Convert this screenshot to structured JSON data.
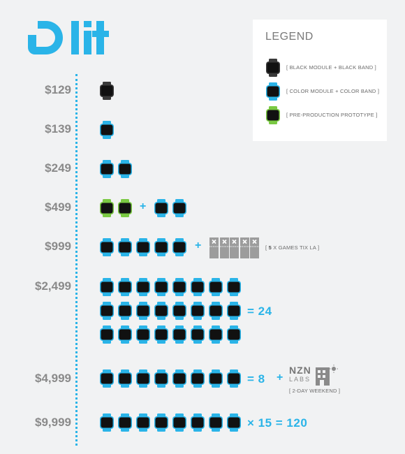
{
  "brand": {
    "name": "lit",
    "accent": "#2ab4e8",
    "price_color": "#8a8a8a"
  },
  "legend": {
    "title": "LEGEND",
    "items": [
      {
        "kind": "black",
        "label": "[  BLACK MODULE + BLACK BAND  ]",
        "module_color": "#111111",
        "band_color": "#3a3a3a"
      },
      {
        "kind": "color",
        "label": "[  COLOR MODULE + COLOR BAND  ]",
        "module_color": "#111111",
        "band_color": "#2ab4e8"
      },
      {
        "kind": "proto",
        "label": "[  PRE-PRODUCTION PROTOTYPE  ]",
        "module_color": "#111111",
        "band_color": "#7ac943"
      }
    ]
  },
  "tiers": [
    {
      "price": "$129",
      "groups": [
        {
          "kind": "black",
          "count": 1
        }
      ]
    },
    {
      "price": "$139",
      "groups": [
        {
          "kind": "color",
          "count": 1
        }
      ]
    },
    {
      "price": "$249",
      "groups": [
        {
          "kind": "color",
          "count": 2
        }
      ]
    },
    {
      "price": "$499",
      "groups": [
        {
          "kind": "proto",
          "count": 2
        },
        {
          "kind": "color",
          "count": 2
        }
      ]
    },
    {
      "price": "$999",
      "groups": [
        {
          "kind": "color",
          "count": 5
        }
      ],
      "extra": {
        "tickets": 5,
        "note_bracket_open": "[ ",
        "note_strong": "5",
        "note_rest": " X GAMES TIX LA ]"
      }
    },
    {
      "price": "$2,499",
      "rows": 3,
      "per_row": 8,
      "total_label": "= 24"
    },
    {
      "price": "$4,999",
      "per_row": 8,
      "total_label": "= 8",
      "extra": {
        "partner_top": "NZN",
        "partner_bottom": "LABS",
        "note": "[ 2-DAY WEEKEND ]"
      }
    },
    {
      "price": "$9,999",
      "per_row": 8,
      "total_label": "× 15 = 120"
    }
  ]
}
